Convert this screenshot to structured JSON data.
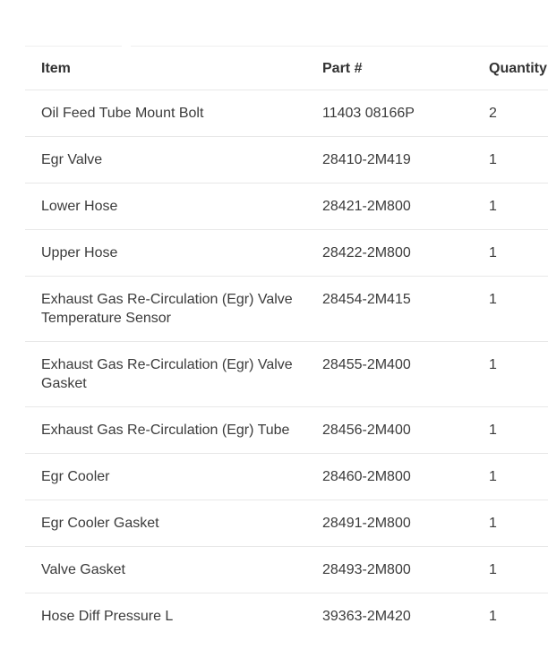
{
  "colors": {
    "text": "#3b3b3b",
    "header_text": "#333333",
    "row_border": "#e8e8e8",
    "top_rule": "#efefef",
    "background": "#ffffff"
  },
  "table": {
    "columns": [
      {
        "key": "item",
        "label": "Item"
      },
      {
        "key": "part",
        "label": "Part #"
      },
      {
        "key": "qty",
        "label": "Quantity"
      }
    ],
    "rows": [
      {
        "item": "Oil Feed Tube Mount Bolt",
        "part": "11403 08166P",
        "qty": "2"
      },
      {
        "item": "Egr Valve",
        "part": "28410-2M419",
        "qty": "1"
      },
      {
        "item": "Lower Hose",
        "part": "28421-2M800",
        "qty": "1"
      },
      {
        "item": "Upper Hose",
        "part": "28422-2M800",
        "qty": "1"
      },
      {
        "item": "Exhaust Gas Re-Circulation (Egr) Valve Temperature Sensor",
        "part": "28454-2M415",
        "qty": "1"
      },
      {
        "item": "Exhaust Gas Re-Circulation (Egr) Valve Gasket",
        "part": "28455-2M400",
        "qty": "1"
      },
      {
        "item": "Exhaust Gas Re-Circulation (Egr) Tube",
        "part": "28456-2M400",
        "qty": "1"
      },
      {
        "item": "Egr Cooler",
        "part": "28460-2M800",
        "qty": "1"
      },
      {
        "item": "Egr Cooler Gasket",
        "part": "28491-2M800",
        "qty": "1"
      },
      {
        "item": "Valve Gasket",
        "part": "28493-2M800",
        "qty": "1"
      },
      {
        "item": "Hose Diff Pressure L",
        "part": "39363-2M420",
        "qty": "1"
      }
    ]
  }
}
